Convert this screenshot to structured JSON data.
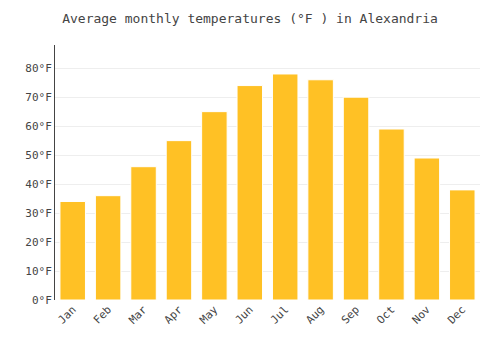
{
  "chart_data": {
    "type": "bar",
    "title": "Average monthly temperatures (°F ) in Alexandria",
    "categories": [
      "Jan",
      "Feb",
      "Mar",
      "Apr",
      "May",
      "Jun",
      "Jul",
      "Aug",
      "Sep",
      "Oct",
      "Nov",
      "Dec"
    ],
    "values": [
      34,
      36,
      46,
      55,
      65,
      74,
      78,
      76,
      70,
      59,
      49,
      38
    ],
    "color": "#FFC125",
    "ylim": [
      0,
      88
    ],
    "yticks": [
      {
        "value": 0,
        "label": "0°F"
      },
      {
        "value": 10,
        "label": "10°F"
      },
      {
        "value": 20,
        "label": "20°F"
      },
      {
        "value": 30,
        "label": "30°F"
      },
      {
        "value": 40,
        "label": "40°F"
      },
      {
        "value": 50,
        "label": "50°F"
      },
      {
        "value": 60,
        "label": "60°F"
      },
      {
        "value": 70,
        "label": "70°F"
      },
      {
        "value": 80,
        "label": "80°F"
      }
    ],
    "grid": true
  }
}
